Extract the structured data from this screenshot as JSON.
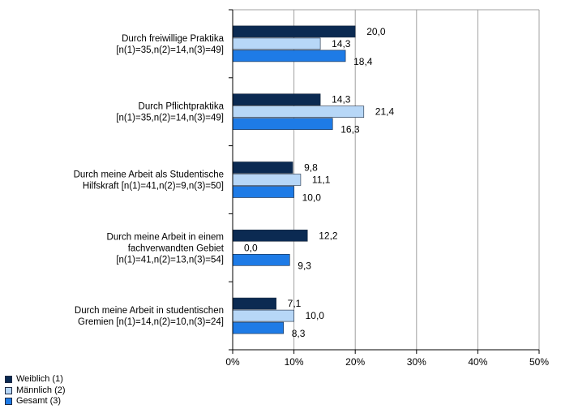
{
  "colors": {
    "weiblich": "#0b2a52",
    "maennlich": "#b7d7f7",
    "gesamt": "#1e7be6",
    "grid": "#a0a0a0",
    "axis": "#000000"
  },
  "chart_data": {
    "type": "bar",
    "orientation": "horizontal",
    "xlim": [
      0,
      50
    ],
    "x_ticks": [
      "0%",
      "10%",
      "20%",
      "30%",
      "40%",
      "50%"
    ],
    "grid": true,
    "legend_position": "bottom-left",
    "categories": [
      {
        "lines": [
          "Durch freiwillige Praktika",
          "[n(1)=35,n(2)=14,n(3)=49]"
        ]
      },
      {
        "lines": [
          "Durch Pflichtpraktika",
          "[n(1)=35,n(2)=14,n(3)=49]"
        ]
      },
      {
        "lines": [
          "Durch meine Arbeit als Studentische",
          "Hilfskraft [n(1)=41,n(2)=9,n(3)=50]"
        ]
      },
      {
        "lines": [
          "Durch meine Arbeit in einem",
          "fachverwandten Gebiet",
          "[n(1)=41,n(2)=13,n(3)=54]"
        ]
      },
      {
        "lines": [
          "Durch meine Arbeit in studentischen",
          "Gremien [n(1)=14,n(2)=10,n(3)=24]"
        ]
      }
    ],
    "series": [
      {
        "name": "Weiblich (1)",
        "color_key": "weiblich",
        "values": [
          20.0,
          14.3,
          9.8,
          12.2,
          7.1
        ],
        "labels": [
          "20,0",
          "14,3",
          "9,8",
          "12,2",
          "7,1"
        ]
      },
      {
        "name": "Männlich (2)",
        "color_key": "maennlich",
        "values": [
          14.3,
          21.4,
          11.1,
          0.0,
          10.0
        ],
        "labels": [
          "14,3",
          "21,4",
          "11,1",
          "0,0",
          "10,0"
        ]
      },
      {
        "name": "Gesamt (3)",
        "color_key": "gesamt",
        "values": [
          18.4,
          16.3,
          10.0,
          9.3,
          8.3
        ],
        "labels": [
          "18,4",
          "16,3",
          "10,0",
          "9,3",
          "8,3"
        ]
      }
    ]
  }
}
